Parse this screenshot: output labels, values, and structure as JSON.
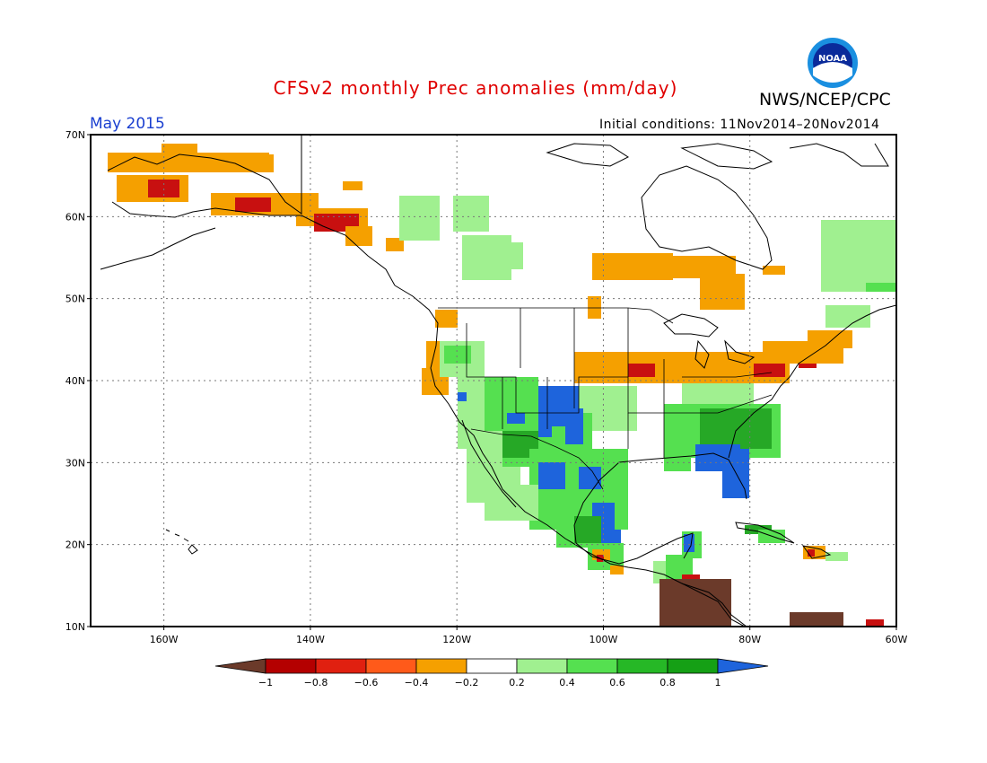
{
  "title": "CFSv2 monthly Prec anomalies (mm/day)",
  "agency": "NWS/NCEP/CPC",
  "logo_text": "NOAA",
  "valid_month": "May 2015",
  "initial_conditions": "Initial conditions: 11Nov2014–20Nov2014",
  "map": {
    "lat_labels": [
      "70N",
      "60N",
      "50N",
      "40N",
      "30N",
      "20N",
      "10N"
    ],
    "lon_labels": [
      "160W",
      "140W",
      "120W",
      "100W",
      "80W",
      "60W"
    ]
  },
  "legend": {
    "tick_labels": [
      "−1",
      "−0.8",
      "−0.6",
      "−0.4",
      "−0.2",
      "0.2",
      "0.4",
      "0.6",
      "0.8",
      "1"
    ],
    "colors": [
      "#6b3a2a",
      "#b40000",
      "#e02010",
      "#ff5a1a",
      "#f5a000",
      "#ffffff",
      "#a0f090",
      "#55e050",
      "#26b826",
      "#15a015",
      "#1e64dc"
    ]
  },
  "anomaly_colors": {
    "dry_strong": "#6b3a2a",
    "dry_red": "#c81010",
    "dry_orange": "#f5a000",
    "wet_light": "#a0f090",
    "wet_mid": "#55e050",
    "wet_dark": "#26a826",
    "wet_blue": "#1e64dc"
  }
}
